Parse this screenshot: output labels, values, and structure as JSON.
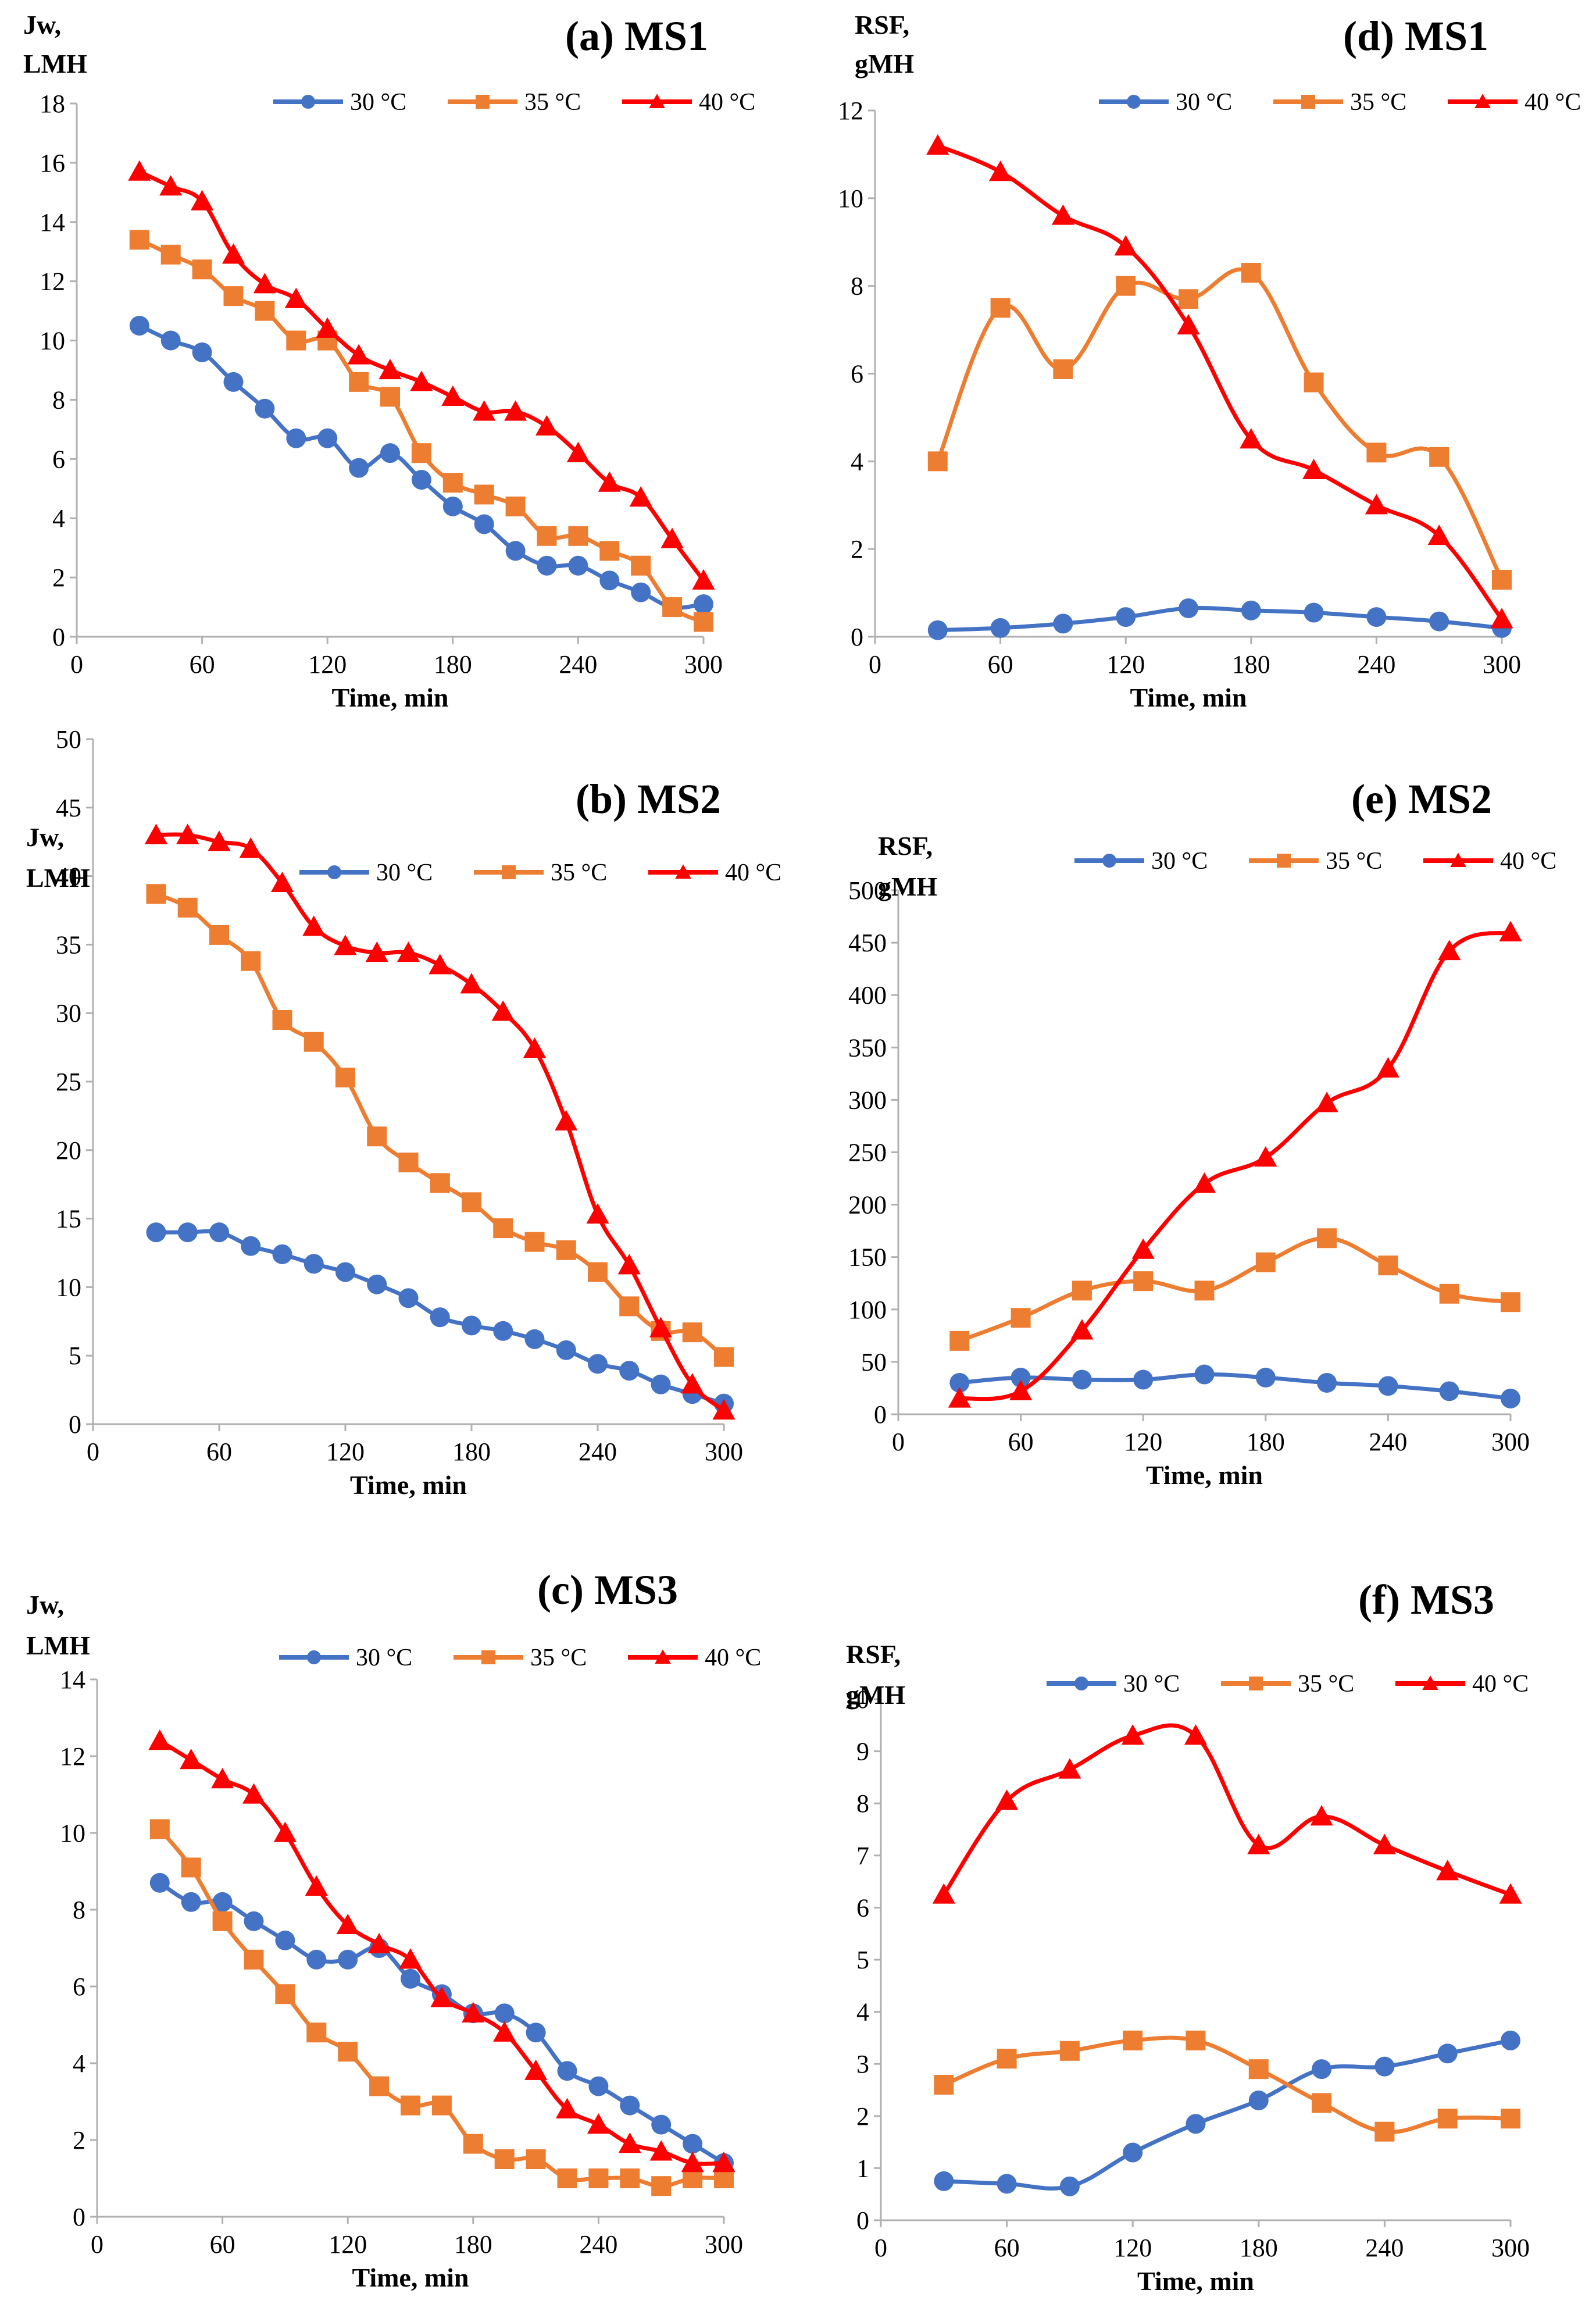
{
  "chart_data": [
    {
      "id": "a",
      "type": "line",
      "title": "(a) MS1",
      "ylabel": [
        "Jw,",
        "LMH"
      ],
      "xlabel": "Time, min",
      "xlim": [
        0,
        300
      ],
      "xticks": [
        0,
        60,
        120,
        180,
        240,
        300
      ],
      "ylim": [
        0,
        18
      ],
      "yticks": [
        0,
        2,
        4,
        6,
        8,
        10,
        12,
        14,
        16,
        18
      ],
      "legend": "top",
      "series": [
        {
          "name": "30 °C",
          "color": "#4472C4",
          "marker": "circle",
          "x": [
            30,
            45,
            60,
            75,
            90,
            105,
            120,
            135,
            150,
            165,
            180,
            195,
            210,
            225,
            240,
            255,
            270,
            285,
            300
          ],
          "y": [
            10.5,
            10.0,
            9.6,
            8.6,
            7.7,
            6.7,
            6.7,
            5.7,
            6.2,
            5.3,
            4.4,
            3.8,
            2.9,
            2.4,
            2.4,
            1.9,
            1.5,
            1.0,
            1.1
          ]
        },
        {
          "name": "35 °C",
          "color": "#ED7D31",
          "marker": "square",
          "x": [
            30,
            45,
            60,
            75,
            90,
            105,
            120,
            135,
            150,
            165,
            180,
            195,
            210,
            225,
            240,
            255,
            270,
            285,
            300
          ],
          "y": [
            13.4,
            12.9,
            12.4,
            11.5,
            11.0,
            10.0,
            10.0,
            8.6,
            8.1,
            6.2,
            5.2,
            4.8,
            4.4,
            3.4,
            3.4,
            2.9,
            2.4,
            1.0,
            0.5
          ]
        },
        {
          "name": "40 °C",
          "color": "#FF0000",
          "marker": "triangle",
          "x": [
            30,
            45,
            60,
            75,
            90,
            105,
            120,
            135,
            150,
            165,
            180,
            195,
            210,
            225,
            240,
            255,
            270,
            285,
            300
          ],
          "y": [
            15.7,
            15.2,
            14.7,
            12.9,
            11.9,
            11.4,
            10.4,
            9.5,
            9.0,
            8.6,
            8.1,
            7.6,
            7.6,
            7.1,
            6.2,
            5.2,
            4.7,
            3.3,
            1.9
          ]
        }
      ]
    },
    {
      "id": "d",
      "type": "line",
      "title": "(d) MS1",
      "ylabel": [
        "RSF,",
        "gMH"
      ],
      "xlabel": "Time, min",
      "xlim": [
        0,
        300
      ],
      "xticks": [
        0,
        60,
        120,
        180,
        240,
        300
      ],
      "ylim": [
        0,
        12
      ],
      "yticks": [
        0,
        2,
        4,
        6,
        8,
        10,
        12
      ],
      "legend": "top",
      "series": [
        {
          "name": "30 °C",
          "color": "#4472C4",
          "marker": "circle",
          "x": [
            30,
            60,
            90,
            120,
            150,
            180,
            210,
            240,
            270,
            300
          ],
          "y": [
            0.15,
            0.2,
            0.3,
            0.45,
            0.65,
            0.6,
            0.55,
            0.45,
            0.35,
            0.2
          ]
        },
        {
          "name": "35 °C",
          "color": "#ED7D31",
          "marker": "square",
          "x": [
            30,
            60,
            90,
            120,
            150,
            180,
            210,
            240,
            270,
            300
          ],
          "y": [
            4.0,
            7.5,
            6.1,
            8.0,
            7.7,
            8.3,
            5.8,
            4.2,
            4.1,
            1.3
          ]
        },
        {
          "name": "40 °C",
          "color": "#FF0000",
          "marker": "triangle",
          "x": [
            30,
            60,
            90,
            120,
            150,
            180,
            210,
            240,
            270,
            300
          ],
          "y": [
            11.2,
            10.6,
            9.6,
            8.9,
            7.1,
            4.5,
            3.8,
            3.0,
            2.3,
            0.4
          ]
        }
      ]
    },
    {
      "id": "b",
      "type": "line",
      "title": "(b) MS2",
      "ylabel": [
        "Jw,",
        "LMH"
      ],
      "xlabel": "Time, min",
      "xlim": [
        0,
        300
      ],
      "xticks": [
        0,
        60,
        120,
        180,
        240,
        300
      ],
      "ylim": [
        0,
        50
      ],
      "yticks": [
        0,
        5,
        10,
        15,
        20,
        25,
        30,
        35,
        40,
        45,
        50
      ],
      "legend": "top",
      "series": [
        {
          "name": "30 °C",
          "color": "#4472C4",
          "marker": "circle",
          "x": [
            30,
            45,
            60,
            75,
            90,
            105,
            120,
            135,
            150,
            165,
            180,
            195,
            210,
            225,
            240,
            255,
            270,
            285,
            300
          ],
          "y": [
            14.0,
            14.0,
            14.0,
            13.0,
            12.4,
            11.7,
            11.1,
            10.2,
            9.2,
            7.8,
            7.2,
            6.8,
            6.2,
            5.4,
            4.4,
            3.9,
            2.9,
            2.2,
            1.5
          ]
        },
        {
          "name": "35 °C",
          "color": "#ED7D31",
          "marker": "square",
          "x": [
            30,
            45,
            60,
            75,
            90,
            105,
            120,
            135,
            150,
            165,
            180,
            195,
            210,
            225,
            240,
            255,
            270,
            285,
            300
          ],
          "y": [
            38.7,
            37.7,
            35.7,
            33.8,
            29.5,
            27.9,
            25.3,
            21.0,
            19.1,
            17.6,
            16.2,
            14.3,
            13.3,
            12.7,
            11.1,
            8.6,
            6.8,
            6.7,
            4.9
          ]
        },
        {
          "name": "40 °C",
          "color": "#FF0000",
          "marker": "triangle",
          "x": [
            30,
            45,
            60,
            75,
            90,
            105,
            120,
            135,
            150,
            165,
            180,
            195,
            210,
            225,
            240,
            255,
            270,
            285,
            300
          ],
          "y": [
            43.0,
            43.0,
            42.5,
            42.0,
            39.5,
            36.3,
            34.9,
            34.4,
            34.4,
            33.5,
            32.1,
            30.1,
            27.4,
            22.1,
            15.3,
            11.6,
            7.0,
            2.9,
            1.0
          ]
        }
      ]
    },
    {
      "id": "e",
      "type": "line",
      "title": "(e) MS2",
      "ylabel": [
        "RSF,",
        "gMH"
      ],
      "xlabel": "Time, min",
      "xlim": [
        0,
        300
      ],
      "xticks": [
        0,
        60,
        120,
        180,
        240,
        300
      ],
      "ylim": [
        0,
        500
      ],
      "yticks": [
        0,
        50,
        100,
        150,
        200,
        250,
        300,
        350,
        400,
        450,
        500
      ],
      "legend": "top",
      "series": [
        {
          "name": "30 °C",
          "color": "#4472C4",
          "marker": "circle",
          "x": [
            30,
            60,
            90,
            120,
            150,
            180,
            210,
            240,
            270,
            300
          ],
          "y": [
            30,
            35,
            33,
            33,
            38,
            35,
            30,
            27,
            22,
            15
          ]
        },
        {
          "name": "35 °C",
          "color": "#ED7D31",
          "marker": "square",
          "x": [
            30,
            60,
            90,
            120,
            150,
            180,
            210,
            240,
            270,
            300
          ],
          "y": [
            70,
            92,
            118,
            127,
            118,
            145,
            168,
            142,
            115,
            107
          ]
        },
        {
          "name": "40 °C",
          "color": "#FF0000",
          "marker": "triangle",
          "x": [
            30,
            60,
            90,
            120,
            150,
            180,
            210,
            240,
            270,
            300
          ],
          "y": [
            15,
            22,
            80,
            157,
            220,
            245,
            297,
            330,
            442,
            460
          ]
        }
      ]
    },
    {
      "id": "c",
      "type": "line",
      "title": "(c) MS3",
      "ylabel": [
        "Jw,",
        "LMH"
      ],
      "xlabel": "Time, min",
      "xlim": [
        0,
        300
      ],
      "xticks": [
        0,
        60,
        120,
        180,
        240,
        300
      ],
      "ylim": [
        0,
        14
      ],
      "yticks": [
        0,
        2,
        4,
        6,
        8,
        10,
        12,
        14
      ],
      "legend": "top",
      "series": [
        {
          "name": "30 °C",
          "color": "#4472C4",
          "marker": "circle",
          "x": [
            30,
            45,
            60,
            75,
            90,
            105,
            120,
            135,
            150,
            165,
            180,
            195,
            210,
            225,
            240,
            255,
            270,
            285,
            300
          ],
          "y": [
            8.7,
            8.2,
            8.2,
            7.7,
            7.2,
            6.7,
            6.7,
            7.0,
            6.2,
            5.8,
            5.3,
            5.3,
            4.8,
            3.8,
            3.4,
            2.9,
            2.4,
            1.9,
            1.4
          ]
        },
        {
          "name": "35 °C",
          "color": "#ED7D31",
          "marker": "square",
          "x": [
            30,
            45,
            60,
            75,
            90,
            105,
            120,
            135,
            150,
            165,
            180,
            195,
            210,
            225,
            240,
            255,
            270,
            285,
            300
          ],
          "y": [
            10.1,
            9.1,
            7.7,
            6.7,
            5.8,
            4.8,
            4.3,
            3.4,
            2.9,
            2.9,
            1.9,
            1.5,
            1.5,
            1.0,
            1.0,
            1.0,
            0.8,
            1.0,
            1.0
          ]
        },
        {
          "name": "40 °C",
          "color": "#FF0000",
          "marker": "triangle",
          "x": [
            30,
            45,
            60,
            75,
            90,
            105,
            120,
            135,
            150,
            165,
            180,
            195,
            210,
            225,
            240,
            255,
            270,
            285,
            300
          ],
          "y": [
            12.4,
            11.9,
            11.4,
            11.0,
            10.0,
            8.6,
            7.6,
            7.1,
            6.7,
            5.7,
            5.3,
            4.8,
            3.8,
            2.8,
            2.4,
            1.9,
            1.7,
            1.4,
            1.4
          ]
        }
      ]
    },
    {
      "id": "f",
      "type": "line",
      "title": "(f) MS3",
      "ylabel": [
        "RSF,",
        "gMH"
      ],
      "xlabel": "Time, min",
      "xlim": [
        0,
        300
      ],
      "xticks": [
        0,
        60,
        120,
        180,
        240,
        300
      ],
      "ylim": [
        0,
        10
      ],
      "yticks": [
        0,
        1,
        2,
        3,
        4,
        5,
        6,
        7,
        8,
        9,
        10
      ],
      "legend": "top",
      "series": [
        {
          "name": "30 °C",
          "color": "#4472C4",
          "marker": "circle",
          "x": [
            30,
            60,
            90,
            120,
            150,
            180,
            210,
            240,
            270,
            300
          ],
          "y": [
            0.75,
            0.7,
            0.65,
            1.3,
            1.85,
            2.3,
            2.9,
            2.95,
            3.2,
            3.45
          ]
        },
        {
          "name": "35 °C",
          "color": "#ED7D31",
          "marker": "square",
          "x": [
            30,
            60,
            90,
            120,
            150,
            180,
            210,
            240,
            270,
            300
          ],
          "y": [
            2.6,
            3.1,
            3.25,
            3.45,
            3.45,
            2.9,
            2.25,
            1.7,
            1.95,
            1.95
          ]
        },
        {
          "name": "40 °C",
          "color": "#FF0000",
          "marker": "triangle",
          "x": [
            30,
            60,
            90,
            120,
            150,
            180,
            210,
            240,
            270,
            300
          ],
          "y": [
            6.25,
            8.05,
            8.65,
            9.3,
            9.3,
            7.2,
            7.75,
            7.2,
            6.7,
            6.25
          ]
        }
      ]
    }
  ]
}
